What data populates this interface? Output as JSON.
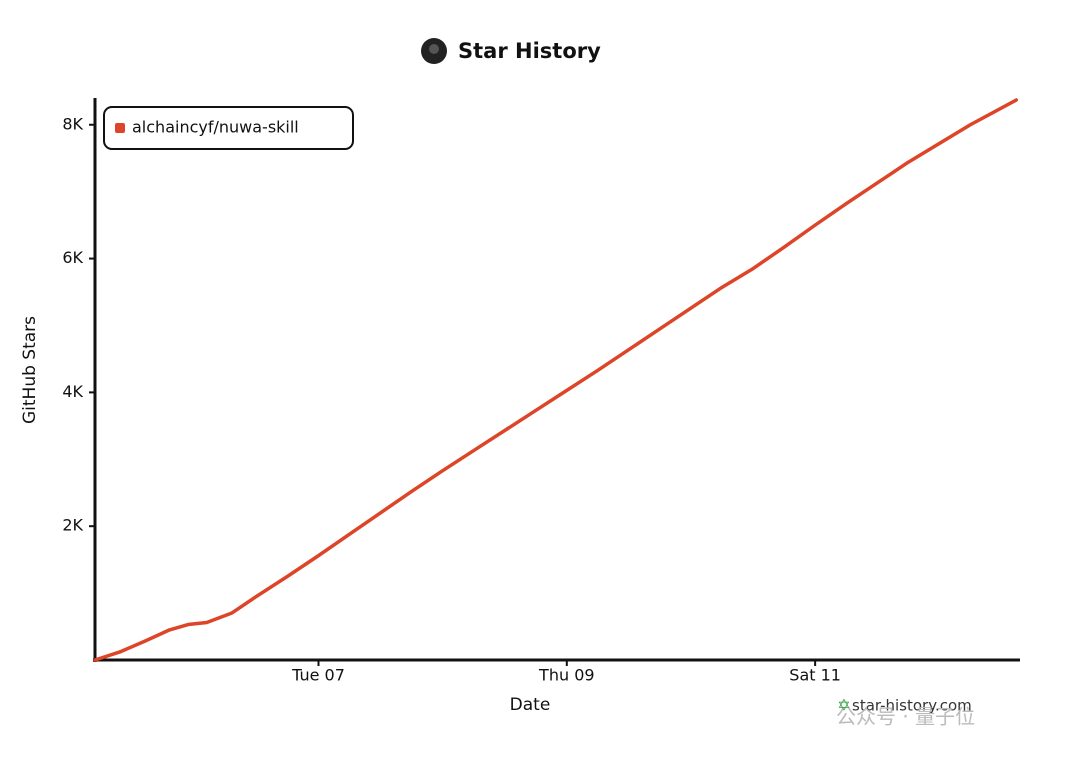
{
  "chart_data": {
    "type": "line",
    "title": "Star History",
    "xlabel": "Date",
    "ylabel": "GitHub Stars",
    "x": [
      5.2,
      5.4,
      5.6,
      5.8,
      5.95,
      6.1,
      6.3,
      6.5,
      6.75,
      7.0,
      7.25,
      7.5,
      7.75,
      8.0,
      8.25,
      8.5,
      8.75,
      9.0,
      9.25,
      9.5,
      9.75,
      10.0,
      10.25,
      10.5,
      10.75,
      11.0,
      11.25,
      11.5,
      11.75,
      12.0,
      12.25,
      12.62
    ],
    "series": [
      {
        "name": "alchaincyf/nuwa-skill",
        "color": "#dd4528",
        "values": [
          0,
          120,
          280,
          450,
          530,
          560,
          700,
          950,
          1250,
          1560,
          1880,
          2200,
          2520,
          2830,
          3130,
          3430,
          3730,
          4030,
          4330,
          4640,
          4950,
          5260,
          5570,
          5850,
          6170,
          6500,
          6820,
          7130,
          7440,
          7720,
          8000,
          8370
        ]
      }
    ],
    "xlim": [
      5.2,
      12.65
    ],
    "xticks": [
      {
        "value": 7,
        "label": "Tue 07"
      },
      {
        "value": 9,
        "label": "Thu 09"
      },
      {
        "value": 11,
        "label": "Sat 11"
      }
    ],
    "ylim": [
      0,
      8400
    ],
    "yticks": [
      {
        "value": 2000,
        "label": "2K"
      },
      {
        "value": 4000,
        "label": "4K"
      },
      {
        "value": 6000,
        "label": "6K"
      },
      {
        "value": 8000,
        "label": "8K"
      }
    ],
    "legend": "top-left",
    "watermark": "star-history.com",
    "footer": "公众号 · 量子位"
  }
}
